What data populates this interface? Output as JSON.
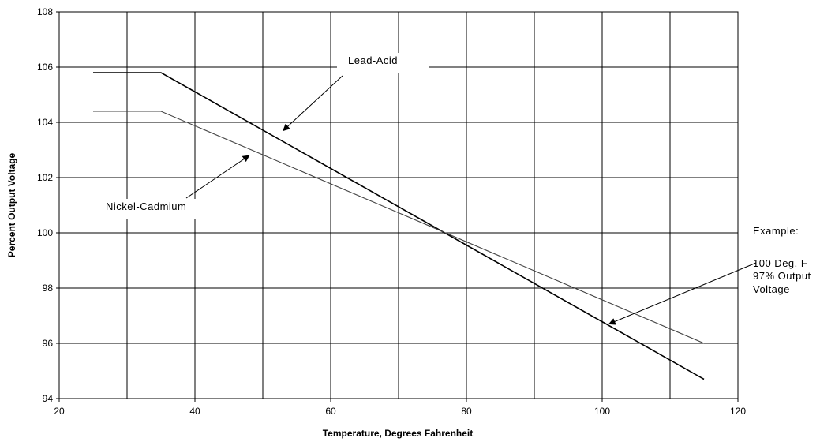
{
  "chart_data": {
    "type": "line",
    "title": "",
    "xlabel": "Temperature, Degrees Fahrenheit",
    "ylabel": "Percent Output Voltage",
    "xlim": [
      20,
      120
    ],
    "ylim": [
      94,
      108
    ],
    "x_ticks": [
      20,
      40,
      60,
      80,
      100,
      120
    ],
    "y_ticks": [
      94,
      96,
      98,
      100,
      102,
      104,
      106,
      108
    ],
    "x_grid_step": 10,
    "y_grid_step": 2,
    "grid": true,
    "legend": "none",
    "series": [
      {
        "name": "Lead-Acid",
        "color": "#000000",
        "x": [
          25,
          35,
          115
        ],
        "y": [
          105.8,
          105.8,
          94.7
        ]
      },
      {
        "name": "Nickel-Cadmium",
        "color": "#444444",
        "x": [
          25,
          35,
          115
        ],
        "y": [
          104.4,
          104.4,
          96.0
        ]
      }
    ],
    "annotations": [
      {
        "lines": [
          "Lead-Acid"
        ],
        "point": [
          53,
          103.7
        ]
      },
      {
        "lines": [
          "Nickel-Cadmium"
        ],
        "point": [
          48,
          102.8
        ]
      },
      {
        "lines": [
          "Example:",
          "100 Deg. F",
          "97% Output",
          "Voltage"
        ],
        "point": [
          101,
          96.7
        ]
      }
    ]
  }
}
